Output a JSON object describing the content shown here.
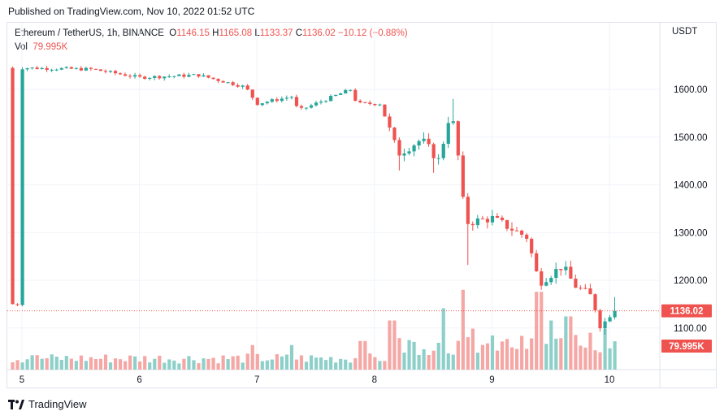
{
  "published": "Published on TradingView.com, Nov 10, 2022 01:52 UTC",
  "symbol": "Ethereum / TetherUS, 1h, BINANCE",
  "ohlc": {
    "open_label": "O",
    "open": "1146.15",
    "high_label": "H",
    "high": "1165.08",
    "low_label": "L",
    "low": "1133.37",
    "close_label": "C",
    "close": "1136.02",
    "change": "−10.12 (−0.88%)"
  },
  "volume": {
    "label": "Vol",
    "value": "79.995K"
  },
  "brand": "TradingView",
  "colors": {
    "up": "#26a69a",
    "down": "#ef5350",
    "up_vol": "#8ed0c9",
    "down_vol": "#f4a7a5",
    "grid": "#f0f3fa"
  },
  "chart_data": {
    "type": "candlestick",
    "currency": "USDT",
    "y_ticks": [
      "1600.00",
      "1500.00",
      "1400.00",
      "1300.00",
      "1200.00",
      "1100.00"
    ],
    "x_ticks": [
      "5",
      "6",
      "7",
      "8",
      "9",
      "10"
    ],
    "last_price": "1136.02",
    "last_volume": "79.995K",
    "grid": true,
    "keypoints": [
      {
        "day": 5.0,
        "price": 1645
      },
      {
        "day": 5.6,
        "price": 1642
      },
      {
        "day": 6.0,
        "price": 1625
      },
      {
        "day": 6.5,
        "price": 1630
      },
      {
        "day": 6.9,
        "price": 1605
      },
      {
        "day": 7.0,
        "price": 1570
      },
      {
        "day": 7.3,
        "price": 1585
      },
      {
        "day": 7.35,
        "price": 1555
      },
      {
        "day": 7.8,
        "price": 1600
      },
      {
        "day": 7.85,
        "price": 1570
      },
      {
        "day": 8.05,
        "price": 1570
      },
      {
        "day": 8.2,
        "price": 1465
      },
      {
        "day": 8.4,
        "price": 1495
      },
      {
        "day": 8.55,
        "price": 1450
      },
      {
        "day": 8.65,
        "price": 1560
      },
      {
        "day": 8.73,
        "price": 1430
      },
      {
        "day": 8.77,
        "price": 1320
      },
      {
        "day": 9.0,
        "price": 1330
      },
      {
        "day": 9.3,
        "price": 1290
      },
      {
        "day": 9.4,
        "price": 1195
      },
      {
        "day": 9.6,
        "price": 1230
      },
      {
        "day": 9.7,
        "price": 1190
      },
      {
        "day": 9.85,
        "price": 1165
      },
      {
        "day": 9.93,
        "price": 1100
      },
      {
        "day": 10.05,
        "price": 1150
      }
    ],
    "volume_spikes": [
      {
        "day": 5.1,
        "rel": 0.35
      },
      {
        "day": 6.0,
        "rel": 0.2
      },
      {
        "day": 6.95,
        "rel": 0.6
      },
      {
        "day": 7.3,
        "rel": 0.6
      },
      {
        "day": 7.9,
        "rel": 0.7
      },
      {
        "day": 8.15,
        "rel": 1.2
      },
      {
        "day": 8.6,
        "rel": 1.5
      },
      {
        "day": 8.75,
        "rel": 1.95
      },
      {
        "day": 8.85,
        "rel": 1.0
      },
      {
        "day": 9.4,
        "rel": 1.9
      },
      {
        "day": 9.5,
        "rel": 1.2
      },
      {
        "day": 9.65,
        "rel": 1.3
      },
      {
        "day": 9.85,
        "rel": 0.9
      },
      {
        "day": 9.95,
        "rel": 1.0
      }
    ]
  }
}
